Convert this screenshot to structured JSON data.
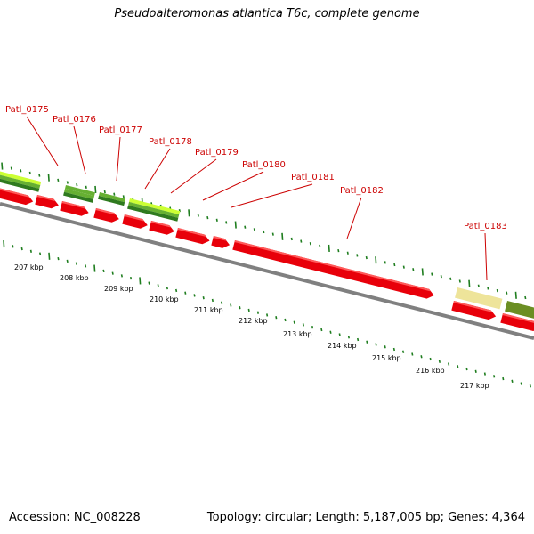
{
  "header": {
    "title": "Pseudoalteromonas atlantica T6c, complete genome"
  },
  "footer": {
    "accession": "Accession: NC_008228",
    "stats": "Topology: circular; Length: 5,187,005 bp; Genes: 4,364"
  },
  "colors": {
    "gene_red": "#e8000a",
    "gene_red_light": "#ff5a5a",
    "backbone": "#808080",
    "tick_green": "#1e7d1e",
    "label_red": "#cc0000",
    "label_line": "#cc0000",
    "cog_light_green": "#ccff33",
    "cog_green": "#66b032",
    "cog_dark_green": "#2f7a1f",
    "cog_pale_yellow": "#eee49a",
    "cog_olive": "#6b8e23"
  },
  "gene_labels": [
    "Patl_0175",
    "Patl_0176",
    "Patl_0177",
    "Patl_0178",
    "Patl_0179",
    "Patl_0180",
    "Patl_0181",
    "Patl_0182",
    "Patl_0183"
  ],
  "kbp_labels": [
    "207 kbp",
    "208 kbp",
    "209 kbp",
    "210 kbp",
    "211 kbp",
    "212 kbp",
    "213 kbp",
    "214 kbp",
    "215 kbp",
    "216 kbp",
    "217 kbp"
  ]
}
